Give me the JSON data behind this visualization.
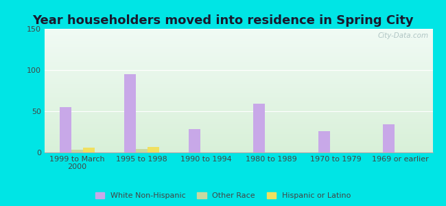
{
  "title": "Year householders moved into residence in Spring City",
  "categories": [
    "1999 to March\n2000",
    "1995 to 1998",
    "1990 to 1994",
    "1980 to 1989",
    "1970 to 1979",
    "1969 or earlier"
  ],
  "white_non_hispanic": [
    55,
    95,
    28,
    59,
    26,
    34
  ],
  "other_race": [
    3,
    4,
    0,
    0,
    0,
    0
  ],
  "hispanic_or_latino": [
    6,
    7,
    0,
    0,
    0,
    0
  ],
  "white_color": "#c8a8e8",
  "other_color": "#c8d8a0",
  "hispanic_color": "#f0e060",
  "ylim": [
    0,
    150
  ],
  "yticks": [
    0,
    50,
    100,
    150
  ],
  "background_outer": "#00e5e5",
  "background_inner_top": "#f0faf4",
  "background_inner_bottom": "#d8f0d8",
  "watermark": "City-Data.com",
  "bar_width": 0.18,
  "title_fontsize": 13,
  "tick_fontsize": 8
}
